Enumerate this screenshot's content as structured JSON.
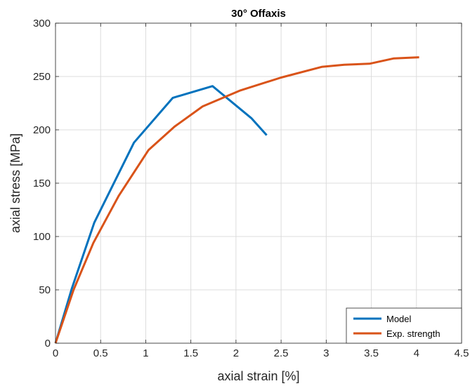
{
  "chart_data": {
    "type": "line",
    "title": "30° Offaxis",
    "xlabel": "axial strain [%]",
    "ylabel": "axial stress [MPa]",
    "xlim": [
      0,
      4.5
    ],
    "ylim": [
      0,
      300
    ],
    "xticks": [
      0,
      0.5,
      1,
      1.5,
      2,
      2.5,
      3,
      3.5,
      4,
      4.5
    ],
    "xtick_labels": [
      "0",
      "0.5",
      "1",
      "1.5",
      "2",
      "2.5",
      "3",
      "3.5",
      "4",
      "4.5"
    ],
    "yticks": [
      0,
      50,
      100,
      150,
      200,
      250,
      300
    ],
    "ytick_labels": [
      "0",
      "50",
      "100",
      "150",
      "200",
      "250",
      "300"
    ],
    "grid": true,
    "legend_position": "bottom-right",
    "series": [
      {
        "name": "Model",
        "color": "#0072BD",
        "x": [
          0,
          0.18,
          0.43,
          0.87,
          1.3,
          1.74,
          2.17,
          2.34
        ],
        "y": [
          0,
          51,
          113,
          188,
          230,
          241,
          211,
          195
        ]
      },
      {
        "name": "Exp. strength",
        "color": "#D95319",
        "x": [
          0,
          0.2,
          0.42,
          0.7,
          1.03,
          1.32,
          1.63,
          2.05,
          2.5,
          2.95,
          3.2,
          3.48,
          3.75,
          4.03
        ],
        "y": [
          0,
          50,
          94,
          138,
          181,
          203,
          222,
          237,
          249,
          259,
          261,
          262,
          267,
          268
        ]
      }
    ]
  }
}
